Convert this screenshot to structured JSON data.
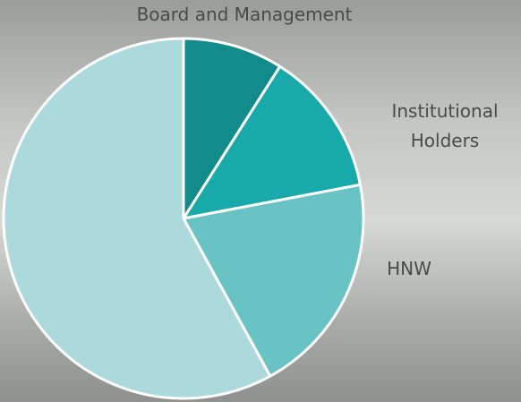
{
  "chart_data": {
    "type": "pie",
    "categories": [
      "Board and Management",
      "Institutional Holders",
      "HNW",
      null
    ],
    "values": [
      9,
      13,
      20,
      58
    ],
    "colors": [
      "#128b8b",
      "#18aaaa",
      "#69c3c4",
      "#acd9db"
    ]
  }
}
